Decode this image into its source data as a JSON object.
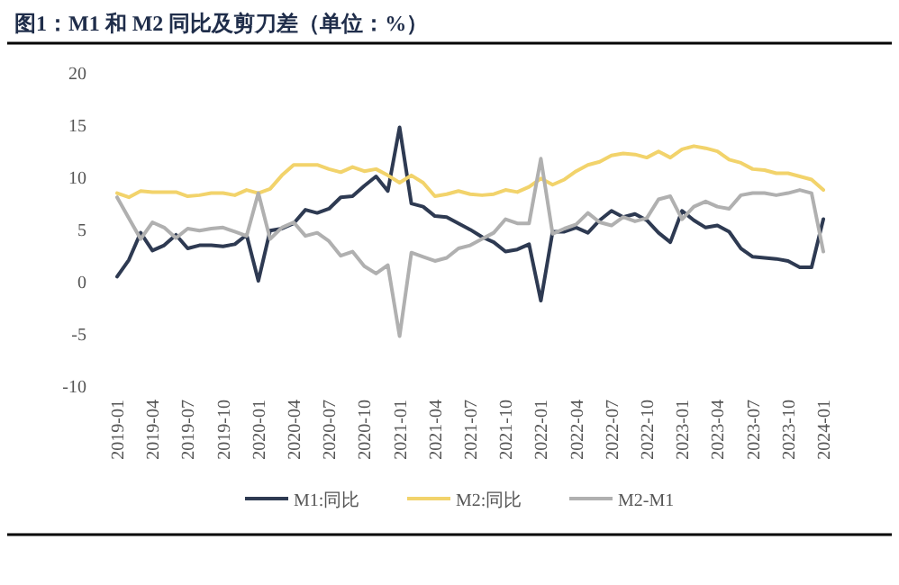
{
  "chart_data": {
    "type": "line",
    "title": "图1：M1 和 M2 同比及剪刀差（单位：%）",
    "categories": [
      "2019-01",
      null,
      null,
      "2019-04",
      null,
      null,
      "2019-07",
      null,
      null,
      "2019-10",
      null,
      null,
      "2020-01",
      null,
      null,
      "2020-04",
      null,
      null,
      "2020-07",
      null,
      null,
      "2020-10",
      null,
      null,
      "2021-01",
      null,
      null,
      "2021-04",
      null,
      null,
      "2021-07",
      null,
      null,
      "2021-10",
      null,
      null,
      "2022-01",
      null,
      null,
      "2022-04",
      null,
      null,
      "2022-07",
      null,
      null,
      "2022-10",
      null,
      null,
      "2023-01",
      null,
      null,
      "2023-04",
      null,
      null,
      "2023-07",
      null,
      null,
      "2023-10",
      null,
      null,
      "2024-01"
    ],
    "series": [
      {
        "name": "M1:同比",
        "color": "#2e3a52",
        "values": [
          0.4,
          2.0,
          4.6,
          2.9,
          3.4,
          4.4,
          3.1,
          3.4,
          3.4,
          3.3,
          3.5,
          4.4,
          0.0,
          4.8,
          5.0,
          5.5,
          6.8,
          6.5,
          6.9,
          8.0,
          8.1,
          9.1,
          10.0,
          8.6,
          14.7,
          7.4,
          7.1,
          6.2,
          6.1,
          5.5,
          4.9,
          4.2,
          3.7,
          2.8,
          3.0,
          3.5,
          -1.9,
          4.7,
          4.7,
          5.1,
          4.6,
          5.8,
          6.7,
          6.1,
          6.4,
          5.8,
          4.6,
          3.7,
          6.7,
          5.8,
          5.1,
          5.3,
          4.7,
          3.1,
          2.3,
          2.2,
          2.1,
          1.9,
          1.3,
          1.3,
          5.9
        ]
      },
      {
        "name": "M2:同比",
        "color": "#f2d36b",
        "values": [
          8.4,
          8.0,
          8.6,
          8.5,
          8.5,
          8.5,
          8.1,
          8.2,
          8.4,
          8.4,
          8.2,
          8.7,
          8.4,
          8.8,
          10.1,
          11.1,
          11.1,
          11.1,
          10.7,
          10.4,
          10.9,
          10.5,
          10.7,
          10.1,
          9.4,
          10.1,
          9.4,
          8.1,
          8.3,
          8.6,
          8.3,
          8.2,
          8.3,
          8.7,
          8.5,
          9.0,
          9.8,
          9.2,
          9.7,
          10.5,
          11.1,
          11.4,
          12.0,
          12.2,
          12.1,
          11.8,
          12.4,
          11.8,
          12.6,
          12.9,
          12.7,
          12.4,
          11.6,
          11.3,
          10.7,
          10.6,
          10.3,
          10.3,
          10.0,
          9.7,
          8.7
        ]
      },
      {
        "name": "M2-M1",
        "color": "#b0b0b0",
        "values": [
          8.0,
          6.0,
          4.0,
          5.6,
          5.1,
          4.1,
          5.0,
          4.8,
          5.0,
          5.1,
          4.7,
          4.3,
          8.4,
          4.0,
          5.1,
          5.6,
          4.3,
          4.6,
          3.8,
          2.4,
          2.8,
          1.4,
          0.7,
          1.5,
          -5.3,
          2.7,
          2.3,
          1.9,
          2.2,
          3.1,
          3.4,
          4.0,
          4.6,
          5.9,
          5.5,
          5.5,
          11.7,
          4.5,
          5.0,
          5.4,
          6.5,
          5.6,
          5.3,
          6.1,
          5.7,
          6.0,
          7.8,
          8.1,
          5.9,
          7.1,
          7.6,
          7.1,
          6.9,
          8.2,
          8.4,
          8.4,
          8.2,
          8.4,
          8.7,
          8.4,
          2.8
        ]
      }
    ],
    "ylim": [
      -10,
      20
    ],
    "yticks": [
      -10,
      -5,
      0,
      5,
      10,
      15,
      20
    ],
    "legend": "bottom"
  }
}
